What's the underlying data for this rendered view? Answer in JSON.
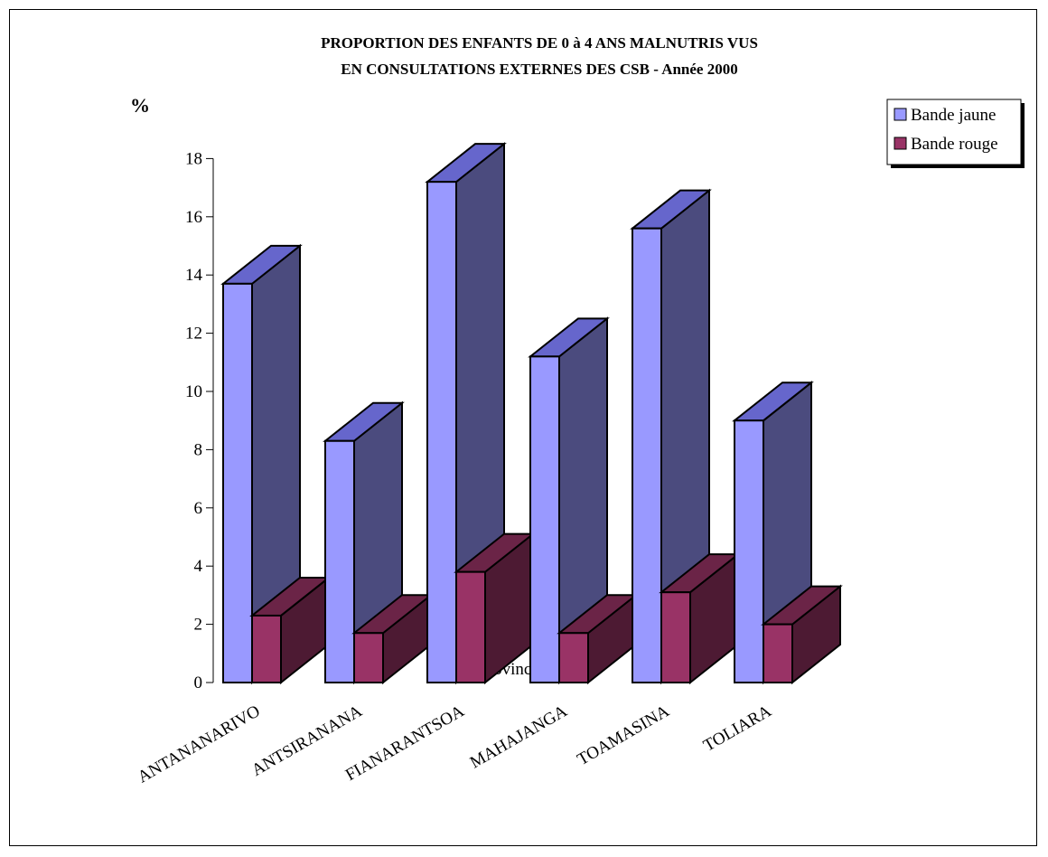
{
  "chart_data": {
    "type": "bar",
    "title_line1": "PROPORTION DES ENFANTS DE 0 à 4 ANS MALNUTRIS VUS",
    "title_line2": "EN CONSULTATIONS  EXTERNES DES CSB  -  Année 2000",
    "ylabel": "%",
    "xlabel": "Province",
    "ylim": [
      0,
      18
    ],
    "yticks": [
      "0",
      "2",
      "4",
      "6",
      "8",
      "10",
      "12",
      "14",
      "16",
      "18"
    ],
    "categories": [
      "ANTANANARIVO",
      "ANTSIRANANA",
      "FIANARANTSOA",
      "MAHAJANGA",
      "TOAMASINA",
      "TOLIARA"
    ],
    "series": [
      {
        "name": "Bande jaune",
        "values": [
          13.7,
          8.3,
          17.2,
          11.2,
          15.6,
          9.0
        ],
        "front": "#9999ff",
        "top": "#6666cc",
        "side": "#4b4b7e"
      },
      {
        "name": "Bande rouge",
        "values": [
          2.3,
          1.7,
          3.8,
          1.7,
          3.1,
          2.0
        ],
        "front": "#993366",
        "top": "#6b2447",
        "side": "#4d1a33"
      }
    ],
    "legend": "top-right",
    "grid": false,
    "view": "3d"
  }
}
